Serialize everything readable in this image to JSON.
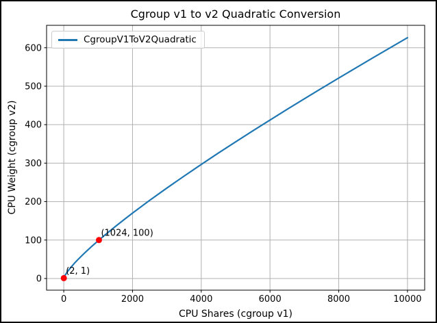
{
  "figure": {
    "background": "#ffffff",
    "border_color": "#000000"
  },
  "chart_data": {
    "type": "line",
    "title": "Cgroup v1 to v2 Quadratic Conversion",
    "xlabel": "CPU Shares (cgroup v1)",
    "ylabel": "CPU Weight (cgroup v2)",
    "xlim": [
      -500,
      10500
    ],
    "ylim": [
      -30.3,
      658.3
    ],
    "xticks": [
      0,
      2000,
      4000,
      6000,
      8000,
      10000
    ],
    "yticks": [
      0,
      100,
      200,
      300,
      400,
      500,
      600
    ],
    "grid": true,
    "grid_color": "#b0b0b0",
    "spine_color": "#000000",
    "legend": {
      "position": "upper-left",
      "entries": [
        {
          "label": "CgroupV1ToV2Quadratic",
          "color": "#1f77b4"
        }
      ]
    },
    "series": [
      {
        "name": "CgroupV1ToV2Quadratic",
        "color": "#1f77b4",
        "x": [
          2,
          10,
          25,
          50,
          100,
          150,
          200,
          300,
          400,
          500,
          600,
          700,
          800,
          900,
          1024,
          1200,
          1500,
          1750,
          2000,
          2500,
          3000,
          3500,
          4000,
          4500,
          5000,
          5500,
          6000,
          6500,
          7000,
          7500,
          8000,
          8500,
          9000,
          9500,
          10000
        ],
        "y": [
          1,
          3.1,
          6.0,
          10.0,
          16.7,
          22.7,
          28.2,
          38.5,
          48.1,
          57.1,
          65.8,
          74.2,
          82.4,
          90.4,
          100,
          113.3,
          135.2,
          152.8,
          170.0,
          203.2,
          235.2,
          266.2,
          296.5,
          326.2,
          355.3,
          383.9,
          412.1,
          439.9,
          467.3,
          494.4,
          521.2,
          547.7,
          574.1,
          600.1,
          626.1
        ]
      }
    ],
    "markers": [
      {
        "x": 2,
        "y": 1,
        "label": "(2, 1)",
        "color": "#ff0000"
      },
      {
        "x": 1024,
        "y": 100,
        "label": "(1024, 100)",
        "color": "#ff0000"
      }
    ]
  }
}
